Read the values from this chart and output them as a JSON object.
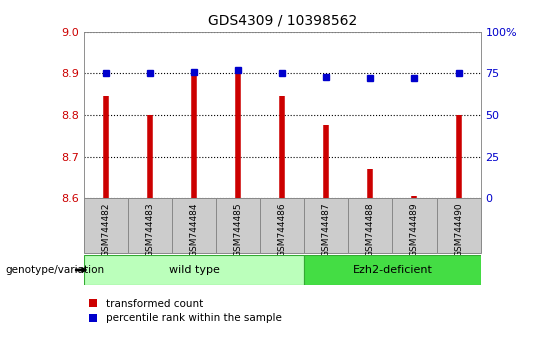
{
  "title": "GDS4309 / 10398562",
  "samples": [
    "GSM744482",
    "GSM744483",
    "GSM744484",
    "GSM744485",
    "GSM744486",
    "GSM744487",
    "GSM744488",
    "GSM744489",
    "GSM744490"
  ],
  "red_values": [
    8.845,
    8.8,
    8.9,
    8.905,
    8.845,
    8.775,
    8.67,
    8.605,
    8.8
  ],
  "blue_values": [
    75,
    75,
    76,
    77,
    75,
    73,
    72,
    72,
    75
  ],
  "ylim_left": [
    8.6,
    9.0
  ],
  "ylim_right": [
    0,
    100
  ],
  "yticks_left": [
    8.6,
    8.7,
    8.8,
    8.9,
    9.0
  ],
  "yticks_right": [
    0,
    25,
    50,
    75,
    100
  ],
  "red_color": "#cc0000",
  "blue_color": "#0000cc",
  "groups": [
    {
      "label": "wild type",
      "start": 0,
      "end": 4,
      "color": "#bbffbb"
    },
    {
      "label": "Ezh2-deficient",
      "start": 5,
      "end": 8,
      "color": "#44dd44"
    }
  ],
  "group_label": "genotype/variation",
  "legend_red": "transformed count",
  "legend_blue": "percentile rank within the sample",
  "bg_color": "#ffffff",
  "tick_label_color_left": "#cc0000",
  "tick_label_color_right": "#0000cc",
  "xticklabel_bg": "#cccccc"
}
